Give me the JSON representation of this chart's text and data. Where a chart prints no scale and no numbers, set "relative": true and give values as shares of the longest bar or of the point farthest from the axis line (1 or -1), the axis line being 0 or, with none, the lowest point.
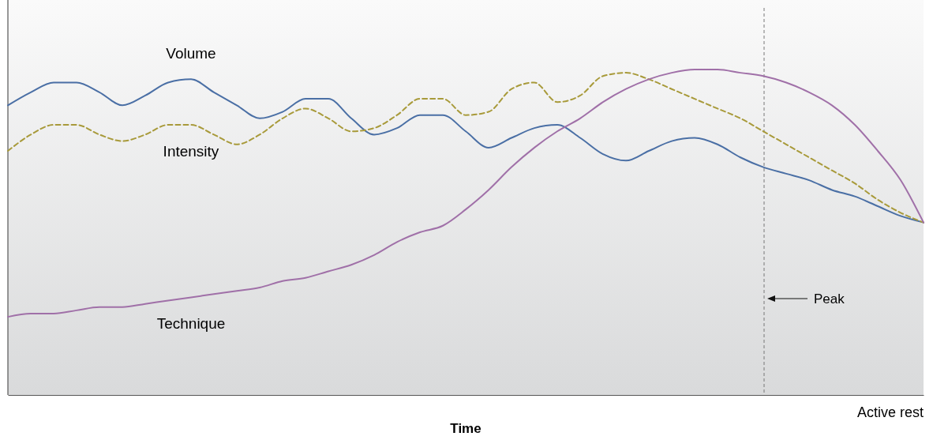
{
  "chart_data": {
    "type": "line",
    "relative": true,
    "xlabel": "Time",
    "grid": false,
    "categories": [
      null,
      null,
      null,
      null,
      null,
      null,
      null,
      null,
      null,
      null,
      null,
      null,
      null,
      null,
      null,
      null,
      null,
      null,
      null,
      null,
      null,
      null,
      null,
      null,
      null,
      null,
      null,
      null,
      null,
      null,
      null,
      null,
      null,
      null,
      null,
      null,
      null,
      null,
      null,
      null,
      null
    ],
    "series": [
      {
        "name": "Volume",
        "color": "#4a6fa5",
        "line_style": "solid",
        "values": [
          0.89,
          0.93,
          0.96,
          0.96,
          0.93,
          0.89,
          0.92,
          0.96,
          0.97,
          0.93,
          0.89,
          0.85,
          0.87,
          0.91,
          0.91,
          0.85,
          0.8,
          0.82,
          0.86,
          0.86,
          0.81,
          0.76,
          0.79,
          0.82,
          0.83,
          0.79,
          0.74,
          0.72,
          0.75,
          0.78,
          0.79,
          0.77,
          0.73,
          0.7,
          0.68,
          0.66,
          0.63,
          0.61,
          0.58,
          0.55,
          0.53
        ]
      },
      {
        "name": "Intensity",
        "color": "#a89a3a",
        "line_style": "dashed",
        "values": [
          0.75,
          0.8,
          0.83,
          0.83,
          0.8,
          0.78,
          0.8,
          0.83,
          0.83,
          0.8,
          0.77,
          0.8,
          0.85,
          0.88,
          0.85,
          0.81,
          0.82,
          0.86,
          0.91,
          0.91,
          0.86,
          0.87,
          0.94,
          0.96,
          0.9,
          0.92,
          0.98,
          0.99,
          0.97,
          0.94,
          0.91,
          0.88,
          0.85,
          0.81,
          0.77,
          0.73,
          0.69,
          0.65,
          0.6,
          0.56,
          0.53
        ]
      },
      {
        "name": "Technique",
        "color": "#a070a8",
        "line_style": "solid",
        "values": [
          0.24,
          0.25,
          0.25,
          0.26,
          0.27,
          0.27,
          0.28,
          0.29,
          0.3,
          0.31,
          0.32,
          0.33,
          0.35,
          0.36,
          0.38,
          0.4,
          0.43,
          0.47,
          0.5,
          0.52,
          0.57,
          0.63,
          0.7,
          0.76,
          0.81,
          0.85,
          0.9,
          0.94,
          0.97,
          0.99,
          1.0,
          1.0,
          0.99,
          0.98,
          0.96,
          0.93,
          0.89,
          0.83,
          0.75,
          0.66,
          0.53
        ]
      }
    ],
    "annotations": [
      "Peak",
      "Active rest"
    ]
  }
}
